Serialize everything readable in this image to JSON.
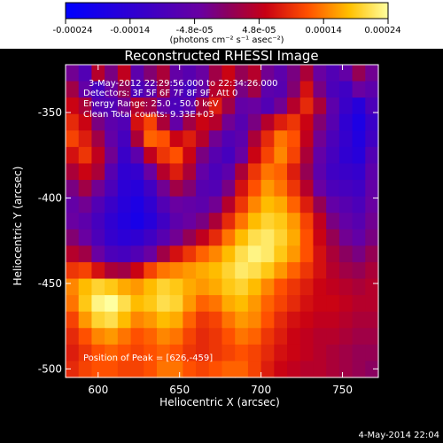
{
  "chart_data": {
    "type": "heatmap",
    "title": "Reconstructed RHESSI Image",
    "xlabel": "Heliocentric X (arcsec)",
    "ylabel": "Heliocentric Y (arcsec)",
    "xlim": [
      580,
      772
    ],
    "ylim": [
      -505,
      -322
    ],
    "x_ticks": [
      "600",
      "650",
      "700",
      "750"
    ],
    "x_tick_values": [
      600,
      650,
      700,
      750
    ],
    "y_ticks": [
      "-350",
      "-400",
      "-450",
      "-500"
    ],
    "y_tick_values": [
      -350,
      -400,
      -450,
      -500
    ],
    "colorbar": {
      "range": [
        -0.00024,
        0.00024
      ],
      "tick_labels": [
        "-0.00024",
        "-0.00014",
        "-4.8e-05",
        "4.8e-05",
        "0.00014",
        "0.00024"
      ],
      "units_label": "(photons cm⁻² s⁻¹ asec⁻²)"
    },
    "annotations": {
      "line1": "3-May-2012 22:29:56.000 to 22:34:26.000",
      "line2": "Detectors: 3F 5F 6F 7F 8F 9F, Att 0",
      "line3": "Energy Range: 25.0 - 50.0 keV",
      "line4": "Clean    Total counts: 9.33E+03",
      "peak": "Position of Peak = [626,-459]"
    },
    "footer_date": "4-May-2014 22:04",
    "grid_sample_values": [
      [
        -3e-05,
        -8e-05,
        4e-05,
        -2e-05,
        5e-05,
        -6e-05,
        -1e-05,
        3e-05,
        -5e-05,
        -7e-05,
        -4e-05,
        2e-05,
        6e-05,
        1e-05,
        4e-05,
        -3e-05,
        -6e-05,
        -2e-05,
        3e-05,
        -4e-05,
        -8e-05,
        -5e-05,
        1e-05,
        -3e-05
      ],
      [
        2e-05,
        -5e-05,
        -0.0001,
        -4e-05,
        1e-05,
        -9e-05,
        -6e-05,
        2e-05,
        -7e-05,
        -0.0001,
        -5e-05,
        4e-05,
        5e-05,
        -2e-05,
        2e-05,
        -6e-05,
        -7e-05,
        -1e-05,
        7e-05,
        -2e-05,
        -9e-05,
        -0.00011,
        -4e-05,
        -6e-05
      ],
      [
        6e-05,
        3e-05,
        -7e-05,
        -8e-05,
        -3e-05,
        4e-05,
        2e-05,
        -4e-05,
        -9e-05,
        -6e-05,
        3e-05,
        8e-05,
        2e-05,
        -5e-05,
        -4e-05,
        -8e-05,
        -3e-05,
        4e-05,
        9e-05,
        3e-05,
        -6e-05,
        -0.00012,
        -0.00016,
        -9e-05
      ],
      [
        9e-05,
        6e-05,
        -2e-05,
        -6e-05,
        -8e-05,
        7e-05,
        0.00011,
        3e-05,
        -5e-05,
        2e-05,
        6e-05,
        4e-05,
        -3e-05,
        -7e-05,
        -2e-05,
        4e-05,
        8e-05,
        0.0001,
        6e-05,
        -1e-05,
        -7e-05,
        -0.00014,
        -0.00018,
        -0.00012
      ],
      [
        0.00011,
        8e-05,
        2e-05,
        -5e-05,
        -0.0001,
        3e-05,
        0.00013,
        0.00012,
        6e-05,
        8e-05,
        4e-05,
        -3e-05,
        -8e-05,
        -6e-05,
        3e-05,
        9e-05,
        0.00014,
        0.00012,
        5e-05,
        -3e-05,
        -9e-05,
        -0.00013,
        -0.00017,
        -0.00011
      ],
      [
        7e-05,
        0.0001,
        5e-05,
        -3e-05,
        -0.00012,
        -6e-05,
        5e-05,
        0.0001,
        0.00012,
        6e-05,
        -2e-05,
        -7e-05,
        -0.0001,
        -4e-05,
        6e-05,
        0.00011,
        0.00015,
        0.00011,
        3e-05,
        -5e-05,
        -0.0001,
        -0.00014,
        -0.00016,
        -8e-05
      ],
      [
        3e-05,
        6e-05,
        3e-05,
        -7e-05,
        -0.00014,
        -0.00013,
        -4e-05,
        4e-05,
        8e-05,
        3e-05,
        -5e-05,
        -9e-05,
        -6e-05,
        3e-05,
        0.0001,
        0.00014,
        0.00013,
        8e-05,
        1e-05,
        -6e-05,
        -0.00011,
        -0.00012,
        -0.00013,
        -6e-05
      ],
      [
        -2e-05,
        2e-05,
        -3e-05,
        -9e-05,
        -0.00015,
        -0.00016,
        -0.00011,
        -3e-05,
        2e-05,
        -1e-05,
        -7e-05,
        -8e-05,
        -2e-05,
        7e-05,
        0.00012,
        0.00016,
        0.00014,
        0.0001,
        4e-05,
        -4e-05,
        -9e-05,
        -0.0001,
        -0.00011,
        -5e-05
      ],
      [
        -5e-05,
        -3e-05,
        -8e-05,
        -0.00012,
        -0.00016,
        -0.00018,
        -0.00014,
        -8e-05,
        -4e-05,
        -5e-05,
        -6e-05,
        -3e-05,
        4e-05,
        0.0001,
        0.00015,
        0.00018,
        0.00017,
        0.00013,
        8e-05,
        1e-05,
        -5e-05,
        -7e-05,
        -9e-05,
        -4e-05
      ],
      [
        -4e-05,
        -6e-05,
        -0.0001,
        -0.00014,
        -0.00017,
        -0.00019,
        -0.00016,
        -0.00011,
        -6e-05,
        -4e-05,
        -2e-05,
        3e-05,
        9e-05,
        0.00014,
        0.00018,
        0.0002,
        0.00019,
        0.00016,
        0.00011,
        5e-05,
        -2e-05,
        -5e-05,
        -7e-05,
        -3e-05
      ],
      [
        -1e-05,
        -4e-05,
        -9e-05,
        -0.00013,
        -0.00015,
        -0.00014,
        -0.00011,
        -7e-05,
        -3e-05,
        1e-05,
        5e-05,
        9e-05,
        0.00014,
        0.00018,
        0.00021,
        0.00022,
        0.0002,
        0.00017,
        0.00012,
        6e-05,
        1e-05,
        -3e-05,
        -5e-05,
        -2e-05
      ],
      [
        4e-05,
        2e-05,
        -4e-05,
        -9e-05,
        -0.0001,
        -8e-05,
        -4e-05,
        2e-05,
        7e-05,
        0.0001,
        0.00013,
        0.00015,
        0.00018,
        0.00021,
        0.00023,
        0.00022,
        0.00019,
        0.00016,
        0.00012,
        7e-05,
        3e-05,
        0.0,
        -2e-05,
        1e-05
      ],
      [
        0.0001,
        0.00011,
        7e-05,
        3e-05,
        2e-05,
        6e-05,
        0.00011,
        0.00014,
        0.00015,
        0.00016,
        0.00017,
        0.00018,
        0.0002,
        0.00022,
        0.00021,
        0.00019,
        0.00016,
        0.00013,
        0.0001,
        7e-05,
        4e-05,
        2e-05,
        1e-05,
        3e-05
      ],
      [
        0.00015,
        0.00018,
        0.0002,
        0.00019,
        0.00017,
        0.00016,
        0.00018,
        0.0002,
        0.00019,
        0.00017,
        0.00016,
        0.00017,
        0.00019,
        0.0002,
        0.00018,
        0.00015,
        0.00012,
        0.0001,
        8e-05,
        6e-05,
        5e-05,
        4e-05,
        3e-05,
        4e-05
      ],
      [
        0.00014,
        0.00019,
        0.00023,
        0.00024,
        0.00021,
        0.00018,
        0.00019,
        0.00021,
        0.0002,
        0.00016,
        0.00013,
        0.00014,
        0.00017,
        0.00018,
        0.00016,
        0.00013,
        0.00011,
        9e-05,
        7e-05,
        6e-05,
        6e-05,
        5e-05,
        4e-05,
        4e-05
      ],
      [
        0.00011,
        0.00016,
        0.0002,
        0.00021,
        0.00018,
        0.00015,
        0.00016,
        0.00018,
        0.00017,
        0.00013,
        0.0001,
        0.00011,
        0.00014,
        0.00016,
        0.00015,
        0.00012,
        9e-05,
        7e-05,
        6e-05,
        5e-05,
        5e-05,
        4e-05,
        3e-05,
        3e-05
      ],
      [
        9e-05,
        0.00012,
        0.00015,
        0.00016,
        0.00014,
        0.00012,
        0.00013,
        0.00015,
        0.00014,
        0.00011,
        9e-05,
        0.0001,
        0.00012,
        0.00014,
        0.00013,
        0.0001,
        8e-05,
        6e-05,
        5e-05,
        4e-05,
        4e-05,
        3e-05,
        2e-05,
        2e-05
      ],
      [
        8e-05,
        0.0001,
        0.00012,
        0.00013,
        0.00012,
        0.00011,
        0.00012,
        0.00013,
        0.00012,
        0.0001,
        9e-05,
        0.0001,
        0.00011,
        0.00012,
        0.00011,
        9e-05,
        7e-05,
        6e-05,
        5e-05,
        4e-05,
        3e-05,
        2e-05,
        1e-05,
        1e-05
      ],
      [
        9e-05,
        0.00011,
        0.00012,
        0.00012,
        0.00011,
        0.00011,
        0.00012,
        0.00014,
        0.00014,
        0.00012,
        0.00011,
        0.00012,
        0.00013,
        0.00013,
        0.00011,
        8e-05,
        6e-05,
        5e-05,
        4e-05,
        4e-05,
        3e-05,
        2e-05,
        1e-05,
        0.0
      ]
    ]
  }
}
